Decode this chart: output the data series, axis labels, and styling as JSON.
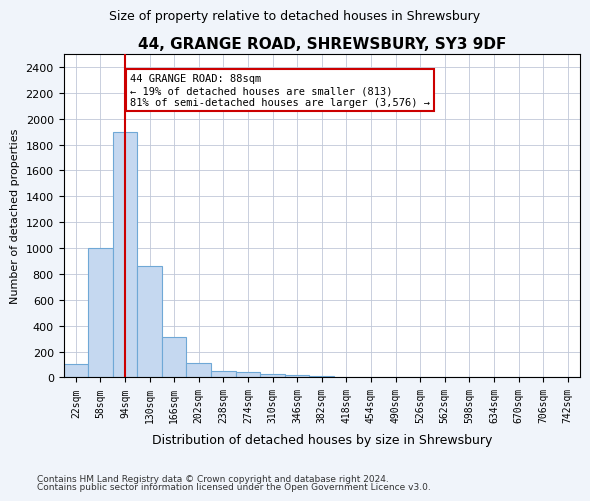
{
  "title": "44, GRANGE ROAD, SHREWSBURY, SY3 9DF",
  "subtitle": "Size of property relative to detached houses in Shrewsbury",
  "xlabel": "Distribution of detached houses by size in Shrewsbury",
  "ylabel": "Number of detached properties",
  "bar_color": "#c5d8f0",
  "bar_edge_color": "#6fa8d6",
  "categories": [
    "22sqm",
    "58sqm",
    "94sqm",
    "130sqm",
    "166sqm",
    "202sqm",
    "238sqm",
    "274sqm",
    "310sqm",
    "346sqm",
    "382sqm",
    "418sqm",
    "454sqm",
    "490sqm",
    "526sqm",
    "562sqm",
    "598sqm",
    "634sqm",
    "670sqm",
    "706sqm",
    "742sqm"
  ],
  "values": [
    100,
    1000,
    1900,
    860,
    310,
    110,
    50,
    40,
    30,
    20,
    10,
    5,
    3,
    2,
    1,
    1,
    1,
    0,
    0,
    0,
    0
  ],
  "ylim": [
    0,
    2500
  ],
  "yticks": [
    0,
    200,
    400,
    600,
    800,
    1000,
    1200,
    1400,
    1600,
    1800,
    2000,
    2200,
    2400
  ],
  "property_line_x": 2.0,
  "annotation_text": "44 GRANGE ROAD: 88sqm\n← 19% of detached houses are smaller (813)\n81% of semi-detached houses are larger (3,576) →",
  "annotation_box_color": "#ffffff",
  "annotation_box_edge": "#cc0000",
  "red_line_color": "#cc0000",
  "footer_line1": "Contains HM Land Registry data © Crown copyright and database right 2024.",
  "footer_line2": "Contains public sector information licensed under the Open Government Licence v3.0.",
  "background_color": "#f0f4fa",
  "plot_background": "#ffffff"
}
